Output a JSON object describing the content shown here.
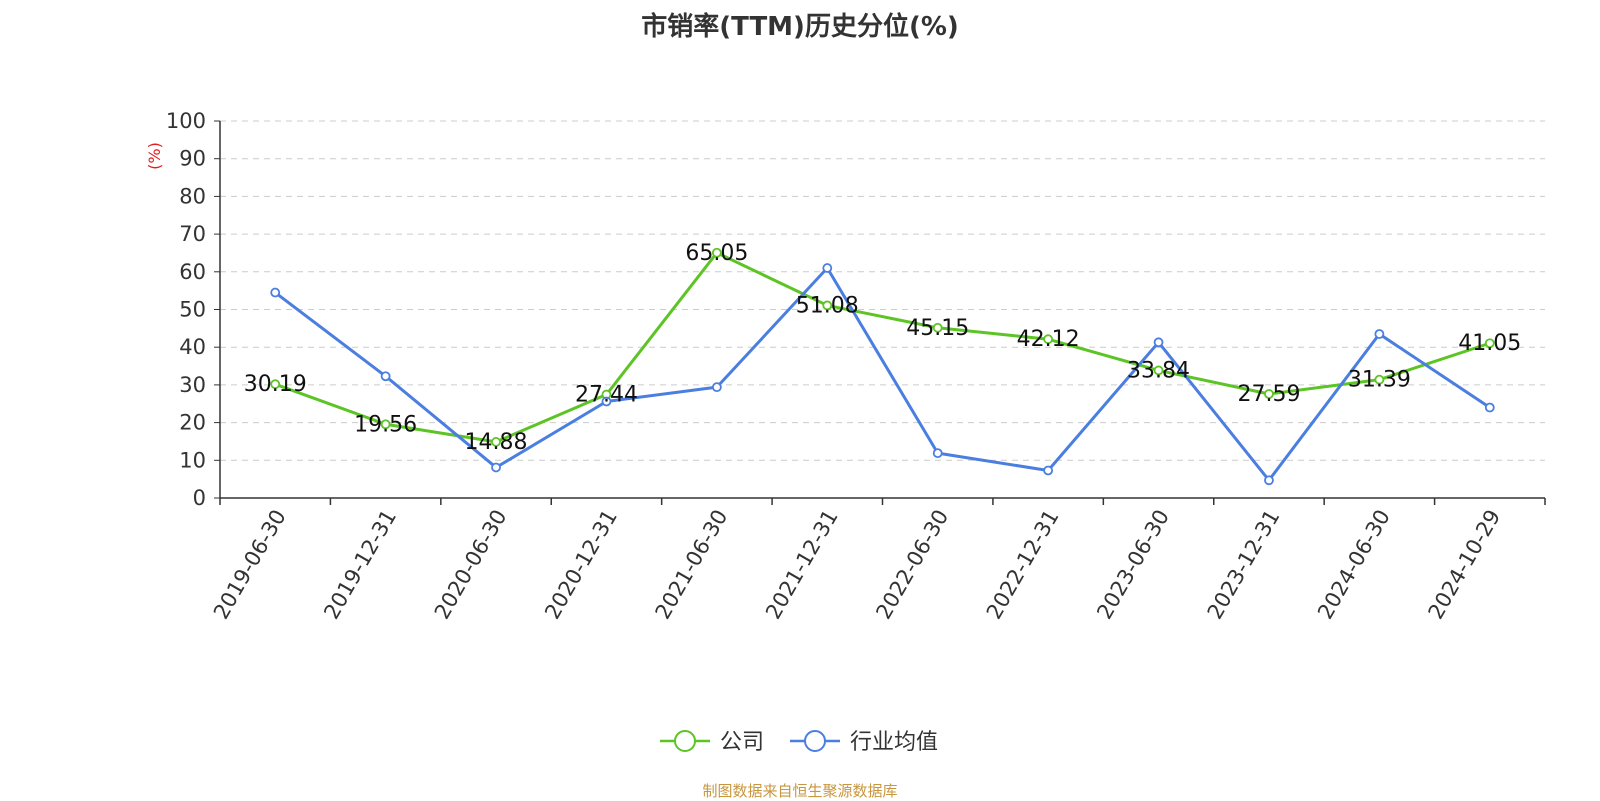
{
  "chart_data": {
    "type": "line",
    "title": "市销率(TTM)历史分位(%)",
    "ylabel": "(%)",
    "ylim": [
      0,
      100
    ],
    "yticks": [
      0,
      10,
      20,
      30,
      40,
      50,
      60,
      70,
      80,
      90,
      100
    ],
    "grid": true,
    "legend_position": "bottom-center",
    "x": [
      "2019-06-30",
      "2019-12-31",
      "2020-06-30",
      "2020-12-31",
      "2021-06-30",
      "2021-12-31",
      "2022-06-30",
      "2022-12-31",
      "2023-06-30",
      "2023-12-31",
      "2024-06-30",
      "2024-10-29"
    ],
    "series": [
      {
        "name": "公司",
        "color": "#5cc424",
        "values": [
          30.19,
          19.56,
          14.88,
          27.44,
          65.05,
          51.08,
          45.15,
          42.12,
          33.84,
          27.59,
          31.39,
          41.05
        ],
        "labels": [
          "30.19",
          "19.56",
          "14.88",
          "27.44",
          "65.05",
          "51.08",
          "45.15",
          "42.12",
          "33.84",
          "27.59",
          "31.39",
          "41.05"
        ]
      },
      {
        "name": "行业均值",
        "color": "#4a7ee0",
        "values": [
          54.5,
          32.3,
          8.1,
          25.6,
          29.4,
          61.0,
          11.9,
          7.3,
          41.3,
          4.7,
          43.5,
          24.0
        ]
      }
    ]
  },
  "source_note": "制图数据来自恒生聚源数据库",
  "colors": {
    "axis": "#333333",
    "grid": "#cccccc",
    "ylabel": "#e02020"
  }
}
